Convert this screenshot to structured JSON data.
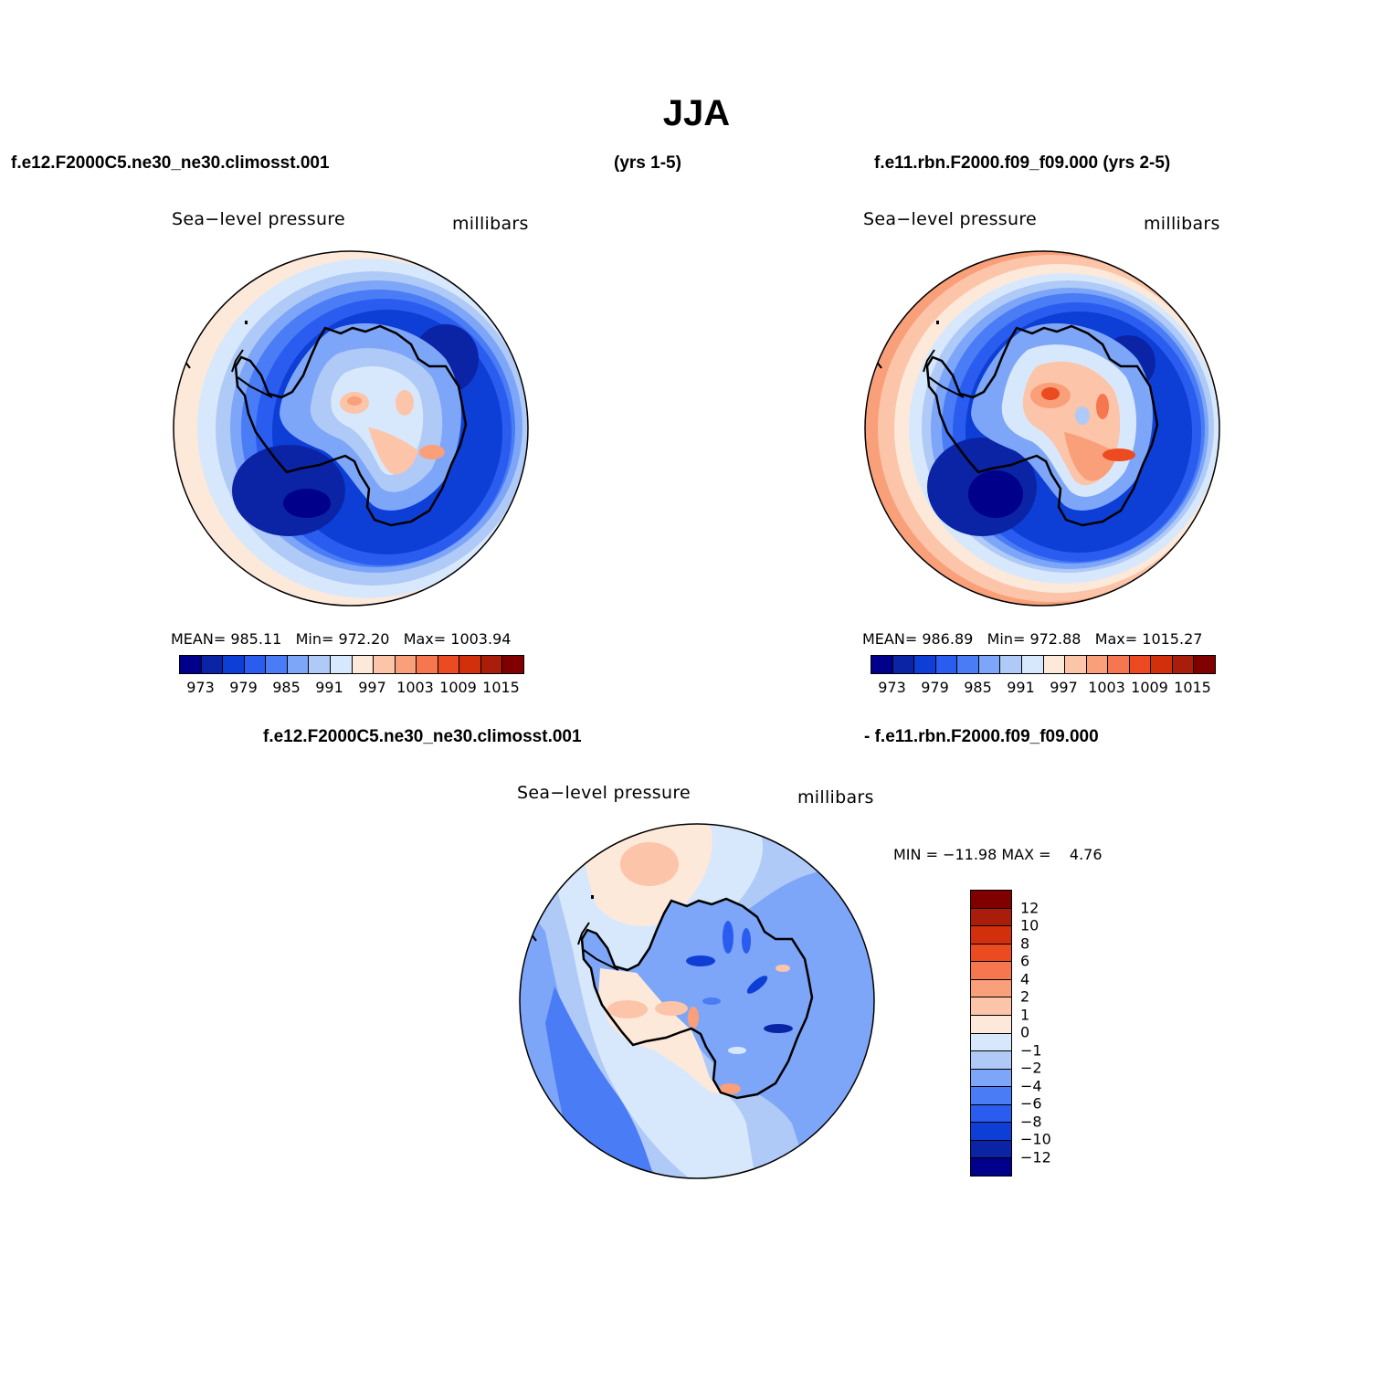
{
  "title": "JJA",
  "header": {
    "case1": "f.e12.F2000C5.ne30_ne30.climosst.001",
    "years1": "(yrs 1-5)",
    "case2": "f.e11.rbn.F2000.f09_f09.000 (yrs 2-5)"
  },
  "panels": [
    {
      "label_left": "Sea−level pressure",
      "label_right": "millibars",
      "stats": "MEAN= 985.11   Min= 972.20   Max= 1003.94",
      "mean": 985.11,
      "min": 972.2,
      "max": 1003.94
    },
    {
      "label_left": "Sea−level pressure",
      "label_right": "millibars",
      "stats": "MEAN= 986.89   Min= 972.88   Max= 1015.27",
      "mean": 986.89,
      "min": 972.88,
      "max": 1015.27
    }
  ],
  "abs_colorbar": {
    "colors": [
      "#00008b",
      "#0a24a5",
      "#0d3fd6",
      "#2a5cf0",
      "#4a7cf5",
      "#7ea6f8",
      "#b0caf7",
      "#d8e8fc",
      "#fde9d9",
      "#fcc4a8",
      "#f99f79",
      "#f6774f",
      "#ec4a20",
      "#d2300c",
      "#aa1d0a",
      "#800000"
    ],
    "ticks": [
      "973",
      "979",
      "985",
      "991",
      "997",
      "1003",
      "1009",
      "1015"
    ]
  },
  "diff": {
    "case_a": "f.e12.F2000C5.ne30_ne30.climosst.001",
    "case_b": "- f.e11.rbn.F2000.f09_f09.000",
    "label_left": "Sea−level pressure",
    "label_right": "millibars",
    "minmax": "MIN = −11.98 MAX =    4.76",
    "min": -11.98,
    "max": 4.76,
    "colorbar": {
      "colors": [
        "#800000",
        "#aa1d0a",
        "#d2300c",
        "#ec4a20",
        "#f6774f",
        "#f99f79",
        "#fcc4a8",
        "#fde9d9",
        "#d8e8fc",
        "#b0caf7",
        "#7ea6f8",
        "#4a7cf5",
        "#2a5cf0",
        "#0d3fd6",
        "#0a24a5",
        "#00008b"
      ],
      "ticks": [
        "12",
        "10",
        "8",
        "6",
        "4",
        "2",
        "1",
        "0",
        "−1",
        "−2",
        "−4",
        "−6",
        "−8",
        "−10",
        "−12"
      ]
    }
  }
}
